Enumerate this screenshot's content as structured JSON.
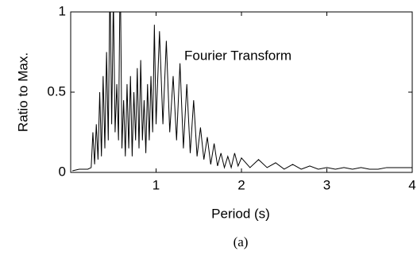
{
  "chart_data": {
    "type": "line",
    "y_label": "Ratio to Max.",
    "x_label": "Period (s)",
    "annotation": "Fourier Transform",
    "caption": "(a)",
    "xlim": [
      0,
      4
    ],
    "xticks": [
      1,
      2,
      3,
      4
    ],
    "ylim": [
      0,
      1
    ],
    "yticks": [
      0,
      0.5,
      1
    ],
    "x": [
      0.02,
      0.1,
      0.2,
      0.24,
      0.26,
      0.28,
      0.3,
      0.32,
      0.34,
      0.36,
      0.38,
      0.4,
      0.42,
      0.44,
      0.46,
      0.48,
      0.5,
      0.52,
      0.54,
      0.56,
      0.58,
      0.6,
      0.62,
      0.64,
      0.66,
      0.68,
      0.7,
      0.72,
      0.74,
      0.76,
      0.78,
      0.8,
      0.82,
      0.84,
      0.86,
      0.88,
      0.9,
      0.92,
      0.94,
      0.96,
      0.98,
      1.0,
      1.04,
      1.08,
      1.12,
      1.16,
      1.2,
      1.24,
      1.28,
      1.32,
      1.36,
      1.4,
      1.44,
      1.48,
      1.52,
      1.56,
      1.6,
      1.64,
      1.68,
      1.72,
      1.76,
      1.8,
      1.84,
      1.88,
      1.92,
      1.96,
      2.0,
      2.1,
      2.2,
      2.3,
      2.4,
      2.5,
      2.6,
      2.7,
      2.8,
      2.9,
      3.0,
      3.1,
      3.2,
      3.3,
      3.4,
      3.5,
      3.6,
      3.7,
      3.8,
      3.9,
      4.0
    ],
    "series": [
      {
        "color": "#000000",
        "values": [
          0.01,
          0.02,
          0.02,
          0.03,
          0.25,
          0.05,
          0.3,
          0.08,
          0.5,
          0.1,
          0.6,
          0.15,
          0.75,
          0.2,
          1.2,
          0.3,
          1.1,
          0.25,
          0.55,
          0.2,
          1.3,
          0.15,
          0.45,
          0.1,
          0.55,
          0.15,
          0.6,
          0.1,
          0.5,
          0.2,
          0.65,
          0.15,
          0.7,
          0.2,
          0.45,
          0.12,
          0.55,
          0.2,
          0.6,
          0.25,
          0.92,
          0.3,
          0.88,
          0.3,
          0.82,
          0.25,
          0.6,
          0.2,
          0.68,
          0.15,
          0.55,
          0.12,
          0.45,
          0.1,
          0.28,
          0.08,
          0.22,
          0.05,
          0.18,
          0.04,
          0.12,
          0.03,
          0.1,
          0.03,
          0.12,
          0.04,
          0.09,
          0.03,
          0.08,
          0.03,
          0.06,
          0.02,
          0.05,
          0.02,
          0.04,
          0.02,
          0.03,
          0.02,
          0.03,
          0.02,
          0.03,
          0.02,
          0.02,
          0.03,
          0.03,
          0.03,
          0.03
        ]
      }
    ]
  }
}
